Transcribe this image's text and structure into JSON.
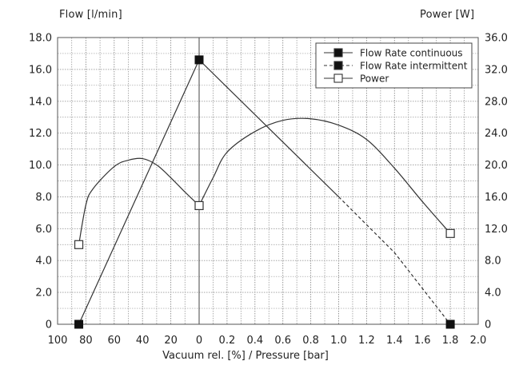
{
  "chart_data": {
    "type": "line",
    "left_axis_title": "Flow [l/min]",
    "right_axis_title": "Power [W]",
    "xlabel": "Vacuum rel. [%] / Pressure [bar]",
    "y_left_ticks": [
      "0",
      "2.0",
      "4.0",
      "6.0",
      "8.0",
      "10.0",
      "12.0",
      "14.0",
      "16.0",
      "18.0"
    ],
    "y_left_range": [
      0,
      18
    ],
    "y_right_ticks": [
      "0",
      "4.0",
      "8.0",
      "12.0",
      "16.0",
      "20.0",
      "24.0",
      "28.0",
      "32.0",
      "36.0"
    ],
    "y_right_range": [
      0,
      36
    ],
    "x_ticks_vacuum": [
      "100",
      "80",
      "60",
      "40",
      "20",
      "0"
    ],
    "x_ticks_pressure": [
      "0.2",
      "0.4",
      "0.6",
      "0.8",
      "1.0",
      "1.2",
      "1.4",
      "1.6",
      "1.8",
      "2.0"
    ],
    "grid": true,
    "legend_position": "top-right",
    "legend": {
      "continuous": "Flow Rate continuous",
      "intermittent": "Flow Rate intermittent",
      "power": "Power"
    },
    "series": [
      {
        "name": "Flow Rate continuous",
        "axis": "left",
        "points": [
          {
            "vacuum": 85,
            "y": 0
          },
          {
            "vacuum": 0,
            "y": 16.6
          },
          {
            "pressure": 1.0,
            "y": 8.0
          }
        ]
      },
      {
        "name": "Flow Rate intermittent",
        "axis": "left",
        "points": [
          {
            "pressure": 1.0,
            "y": 8.0
          },
          {
            "pressure": 1.4,
            "y": 4.5
          },
          {
            "pressure": 1.8,
            "y": 0
          }
        ]
      },
      {
        "name": "Power",
        "axis": "right",
        "points": [
          {
            "vacuum": 85,
            "y": 10
          },
          {
            "vacuum": 80,
            "y": 15
          },
          {
            "vacuum": 75,
            "y": 17
          },
          {
            "vacuum": 60,
            "y": 19.8
          },
          {
            "vacuum": 50,
            "y": 20.6
          },
          {
            "vacuum": 40,
            "y": 20.8
          },
          {
            "vacuum": 30,
            "y": 20
          },
          {
            "vacuum": 20,
            "y": 18.4
          },
          {
            "vacuum": 10,
            "y": 16.6
          },
          {
            "vacuum": 0,
            "y": 14.9
          },
          {
            "pressure": 0.1,
            "y": 18.4
          },
          {
            "pressure": 0.2,
            "y": 21.6
          },
          {
            "pressure": 0.4,
            "y": 24.2
          },
          {
            "pressure": 0.6,
            "y": 25.6
          },
          {
            "pressure": 0.8,
            "y": 25.8
          },
          {
            "pressure": 1.0,
            "y": 25
          },
          {
            "pressure": 1.2,
            "y": 23.2
          },
          {
            "pressure": 1.4,
            "y": 19.6
          },
          {
            "pressure": 1.6,
            "y": 15.4
          },
          {
            "pressure": 1.8,
            "y": 11.4
          }
        ],
        "markers": [
          {
            "vacuum": 85,
            "y": 10
          },
          {
            "vacuum": 0,
            "y": 14.9
          },
          {
            "pressure": 1.8,
            "y": 11.4
          }
        ]
      }
    ],
    "flow_markers": [
      {
        "vacuum": 85,
        "y": 0
      },
      {
        "vacuum": 0,
        "y": 16.6
      },
      {
        "pressure": 1.8,
        "y": 0
      }
    ]
  }
}
